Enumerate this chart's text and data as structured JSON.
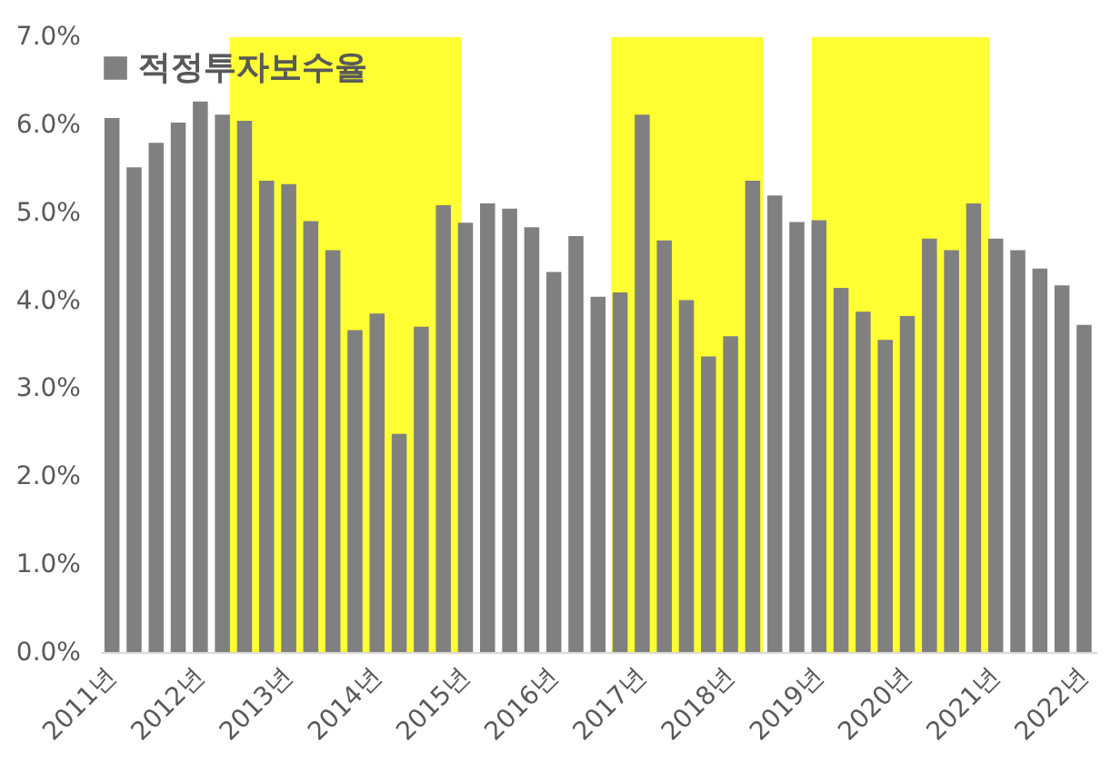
{
  "chart_data": {
    "type": "bar",
    "x": [
      2011,
      2011.25,
      2011.5,
      2011.75,
      2012,
      2012.25,
      2012.5,
      2012.75,
      2013,
      2013.25,
      2013.5,
      2013.75,
      2014,
      2014.25,
      2014.5,
      2014.75,
      2015,
      2015.25,
      2015.5,
      2015.75,
      2016,
      2016.25,
      2016.5,
      2016.75,
      2017,
      2017.25,
      2017.5,
      2017.75,
      2018,
      2018.25,
      2018.5,
      2018.75,
      2019,
      2019.25,
      2019.5,
      2019.75,
      2020,
      2020.25,
      2020.5,
      2020.75,
      2021,
      2021.25,
      2021.5,
      2021.75,
      2022
    ],
    "series": [
      {
        "name": "적정투자보수율",
        "color": "#808080",
        "values": [
          6.08,
          5.52,
          5.8,
          6.03,
          6.27,
          6.12,
          6.05,
          5.37,
          5.33,
          4.91,
          4.58,
          3.67,
          3.86,
          2.49,
          3.71,
          5.09,
          4.89,
          5.11,
          5.05,
          4.84,
          4.33,
          4.74,
          4.05,
          4.1,
          6.12,
          4.69,
          4.01,
          3.37,
          3.6,
          5.37,
          5.2,
          4.9,
          4.92,
          4.15,
          3.88,
          3.56,
          3.83,
          4.71,
          4.58,
          5.11,
          4.71,
          4.58,
          4.37,
          4.18,
          3.73
        ]
      }
    ],
    "xlim": [
      2010.875,
      2022.15
    ],
    "xticks": [
      {
        "value": 2011,
        "label": "2011년"
      },
      {
        "value": 2012,
        "label": "2012년"
      },
      {
        "value": 2013,
        "label": "2013년"
      },
      {
        "value": 2014,
        "label": "2014년"
      },
      {
        "value": 2015,
        "label": "2015년"
      },
      {
        "value": 2016,
        "label": "2016년"
      },
      {
        "value": 2017,
        "label": "2017년"
      },
      {
        "value": 2018,
        "label": "2018년"
      },
      {
        "value": 2019,
        "label": "2019년"
      },
      {
        "value": 2020,
        "label": "2020년"
      },
      {
        "value": 2021,
        "label": "2021년"
      },
      {
        "value": 2022,
        "label": "2022년"
      }
    ],
    "ylim": [
      0,
      7
    ],
    "yticks": [
      {
        "value": 0,
        "label": "0.0%"
      },
      {
        "value": 1,
        "label": "1.0%"
      },
      {
        "value": 2,
        "label": "2.0%"
      },
      {
        "value": 3,
        "label": "3.0%"
      },
      {
        "value": 4,
        "label": "4.0%"
      },
      {
        "value": 5,
        "label": "5.0%"
      },
      {
        "value": 6,
        "label": "6.0%"
      },
      {
        "value": 7,
        "label": "7.0%"
      }
    ],
    "bands": [
      {
        "axis": "x",
        "from": 2012.33,
        "to": 2014.95,
        "color": "#ffff33"
      },
      {
        "axis": "x",
        "from": 2016.65,
        "to": 2018.37,
        "color": "#ffff33"
      },
      {
        "axis": "x",
        "from": 2018.92,
        "to": 2020.93,
        "color": "#ffff33"
      }
    ],
    "grid": false,
    "legend": "top left"
  }
}
